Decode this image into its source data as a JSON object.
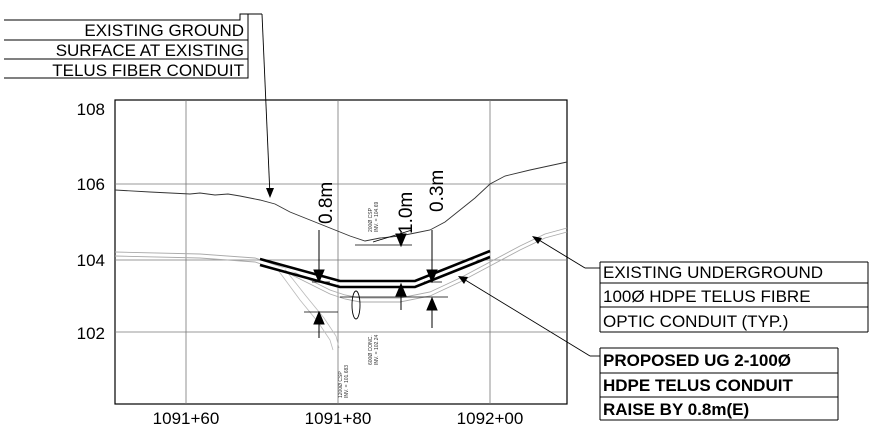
{
  "chart_data": {
    "type": "profile",
    "x_ticks": [
      "1091+60",
      "1091+80",
      "1092+00"
    ],
    "y_ticks": [
      "108",
      "106",
      "104",
      "102"
    ],
    "ylim": [
      100,
      108
    ],
    "grid": true
  },
  "annotations": {
    "ground_surface": [
      "EXISTING GROUND",
      "SURFACE AT EXISTING",
      "TELUS FIBER CONDUIT"
    ],
    "existing_conduit": [
      "EXISTING UNDERGROUND",
      "100Ø HDPE  TELUS FIBRE",
      "OPTIC CONDUIT (TYP.)"
    ],
    "proposed_conduit": [
      "PROPOSED UG 2-100Ø",
      "HDPE TELUS CONDUIT",
      "RAISE BY 0.8m(E)"
    ]
  },
  "dimensions": [
    "0.8m",
    "1.0m",
    "0.3m"
  ],
  "crossings": {
    "upper": [
      "200Ø CSP",
      "INV. = 104.69"
    ],
    "lower": [
      "600Ø CONC.",
      "INV. = 102.24"
    ],
    "csp_note": [
      "1200Ø CSP",
      "INV. = 101.683"
    ]
  }
}
